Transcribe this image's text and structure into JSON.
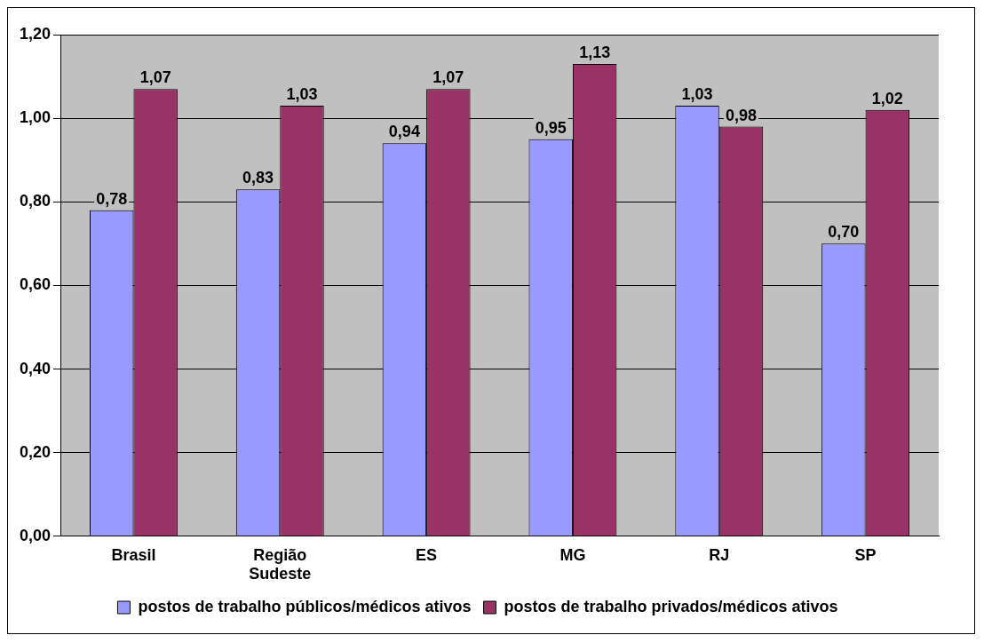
{
  "chart_data": {
    "type": "bar",
    "categories": [
      "Brasil",
      "Região Sudeste",
      "ES",
      "MG",
      "RJ",
      "SP"
    ],
    "series": [
      {
        "name": "postos de trabalho públicos/médicos ativos",
        "color": "#9999ff",
        "values": [
          0.78,
          0.83,
          0.94,
          0.95,
          1.03,
          0.7
        ],
        "value_labels": [
          "0,78",
          "0,83",
          "0,94",
          "0,95",
          "1,03",
          "0,70"
        ]
      },
      {
        "name": "postos de trabalho privados/médicos ativos",
        "color": "#993366",
        "values": [
          1.07,
          1.03,
          1.07,
          1.13,
          0.98,
          1.02
        ],
        "value_labels": [
          "1,07",
          "1,03",
          "1,07",
          "1,13",
          "0,98",
          "1,02"
        ]
      }
    ],
    "ylim": [
      0,
      1.2
    ],
    "yticks": [
      {
        "value": 0,
        "label": "0,00"
      },
      {
        "value": 0.2,
        "label": "0,20"
      },
      {
        "value": 0.4,
        "label": "0,40"
      },
      {
        "value": 0.6,
        "label": "0,60"
      },
      {
        "value": 0.8,
        "label": "0,80"
      },
      {
        "value": 1,
        "label": "1,00"
      },
      {
        "value": 1.2,
        "label": "1,20"
      }
    ],
    "grid": "y",
    "legend": "bottom"
  }
}
